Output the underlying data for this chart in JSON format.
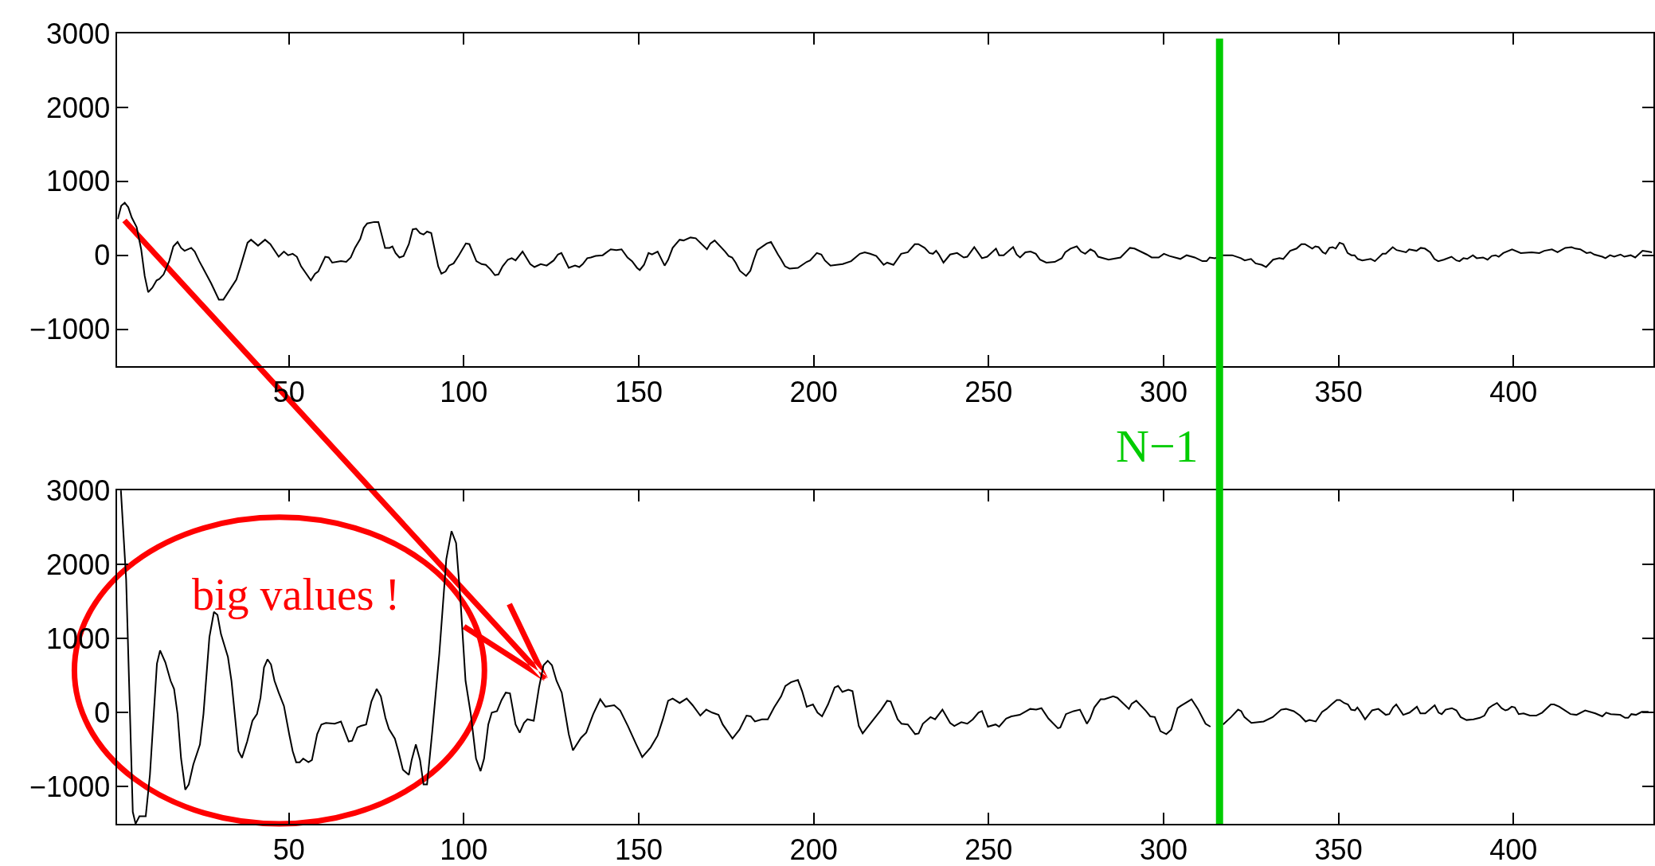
{
  "chart_data": [
    {
      "type": "line",
      "color": "#000000",
      "xlim": [
        1,
        440
      ],
      "xticks": [
        50,
        100,
        150,
        200,
        250,
        300,
        350,
        400
      ],
      "ylim": [
        -1500,
        3000
      ],
      "yticks": [
        {
          "value": -1000,
          "label": "−1000"
        },
        0,
        1000,
        2000,
        3000
      ],
      "grid": false,
      "x": [
        1.1,
        2.1,
        3.1,
        4.1,
        5.1,
        6.5,
        7.8,
        8.8,
        9.8,
        11,
        12.2,
        13,
        14.2,
        15.8,
        17,
        18.2,
        19.2,
        20.2,
        22.1,
        23.1,
        24.4,
        27.8,
        30,
        31.3,
        35,
        36.2,
        38.2,
        39.2,
        41.2,
        43.2,
        44.7,
        47.1,
        48.6,
        49.8,
        51.1,
        52.3,
        53.5,
        56.3,
        57.5,
        58.4,
        60.4,
        61.4,
        62.4,
        64.9,
        66.4,
        67.7,
        68.9,
        70.4,
        71.4,
        72.4,
        74.4,
        75.6,
        77.5,
        78.8,
        79.6,
        80.5,
        81.6,
        82.8,
        84.3,
        85.4,
        86.4,
        87.5,
        88.5,
        89.5,
        90.7,
        92.7,
        93.6,
        94.8,
        95.8,
        97.1,
        98.6,
        100.6,
        101.6,
        103.6,
        105.1,
        106.3,
        107.6,
        108.9,
        109.9,
        111.1,
        112.6,
        113.7,
        114.8,
        116.8,
        119,
        120.2,
        122,
        123.7,
        125.7,
        126.9,
        127.9,
        130,
        131.8,
        133,
        134,
        135.3,
        136.3,
        137.7,
        139.7,
        142,
        143.6,
        145.1,
        146.8,
        148.1,
        149.5,
        150.3,
        151.5,
        152.8,
        153.8,
        155.4,
        157.4,
        158.4,
        159.7,
        161.7,
        162.8,
        164.8,
        166.3,
        169.5,
        170.5,
        171.7,
        174.7,
        175.7,
        176.7,
        177.7,
        178.9,
        180.7,
        181.9,
        182.9,
        183.9,
        186.6,
        187.8,
        189.8,
        190.6,
        191.8,
        193.1,
        195.5,
        198,
        199,
        200.9,
        202.2,
        203.2,
        204.8,
        208.3,
        210.7,
        213.2,
        214.6,
        216.1,
        217.9,
        220,
        221,
        222.8,
        225,
        226.9,
        228.9,
        229.9,
        231.7,
        233.1,
        234.1,
        235,
        235.8,
        237.1,
        239,
        241,
        242.9,
        243.9,
        245.9,
        248.1,
        249.6,
        252.1,
        253,
        254.3,
        257,
        258,
        259,
        260.5,
        262,
        263.5,
        264.7,
        266.5,
        268.9,
        270.9,
        271.9,
        273.4,
        275.2,
        276.4,
        277.6,
        279.1,
        280.3,
        281.3,
        284.3,
        287.7,
        290.4,
        291.7,
        295.2,
        296.6,
        298.6,
        300.1,
        301.7,
        304.8,
        306.6,
        308.9,
        311.1,
        312.3,
        313.2,
        314.7,
        316.9,
        319.6,
        322.1,
        323.2,
        325,
        326.3,
        328.1,
        329.3,
        331.3,
        333.1,
        334.2,
        336.2,
        338,
        339.4,
        340.4,
        342.5,
        343.4,
        344.3,
        345.5,
        346.3,
        347.4,
        348.3,
        349.2,
        350.3,
        351.4,
        352.6,
        353.7,
        354.6,
        355.5,
        356.8,
        359.2,
        360.4,
        362.6,
        363.5,
        365.5,
        366.6,
        369.3,
        370.2,
        372.3,
        373.5,
        374.7,
        376.2,
        377.4,
        378.5,
        380.1,
        382.3,
        383.7,
        384.6,
        385.7,
        386.8,
        388.4,
        389.5,
        391.3,
        392.6,
        393.8,
        394.9,
        395.8,
        397.1,
        399.6,
        402.1,
        405.2,
        407.4,
        408.8,
        411,
        412.6,
        414.8,
        416.6,
        417.7,
        419.1,
        420.9,
        422,
        423.1,
        425.4,
        426.3,
        427.6,
        428.8,
        430.6,
        431.7,
        433.5,
        434.8,
        436.9,
        438.4,
        439.6
      ],
      "values": [
        490,
        670,
        710,
        650,
        510,
        380,
        80,
        -280,
        -500,
        -440,
        -340,
        -320,
        -260,
        -80,
        120,
        180,
        100,
        60,
        100,
        50,
        -80,
        -380,
        -600,
        -600,
        -330,
        -150,
        170,
        210,
        130,
        210,
        150,
        -20,
        50,
        0,
        20,
        -20,
        -150,
        -340,
        -250,
        -220,
        -20,
        -30,
        -100,
        -80,
        -90,
        -30,
        100,
        220,
        370,
        430,
        450,
        450,
        100,
        100,
        120,
        30,
        -30,
        -10,
        150,
        350,
        360,
        300,
        280,
        320,
        300,
        -150,
        -250,
        -220,
        -140,
        -110,
        0,
        160,
        150,
        -80,
        -120,
        -130,
        -190,
        -270,
        -260,
        -150,
        -60,
        -40,
        -70,
        50,
        -120,
        -160,
        -120,
        -140,
        -70,
        10,
        30,
        -170,
        -140,
        -160,
        -120,
        -40,
        -30,
        -10,
        0,
        80,
        70,
        80,
        -30,
        -80,
        -170,
        -200,
        -130,
        30,
        10,
        50,
        -140,
        -60,
        100,
        210,
        200,
        240,
        230,
        80,
        160,
        200,
        50,
        -10,
        -30,
        -100,
        -210,
        -280,
        -210,
        -60,
        70,
        160,
        180,
        10,
        -50,
        -150,
        -180,
        -170,
        -90,
        -70,
        30,
        10,
        -70,
        -140,
        -120,
        -80,
        20,
        40,
        20,
        -10,
        -130,
        -100,
        -130,
        20,
        40,
        150,
        150,
        100,
        30,
        20,
        60,
        10,
        -100,
        10,
        30,
        -30,
        -20,
        110,
        -40,
        -20,
        90,
        0,
        0,
        110,
        10,
        -30,
        40,
        50,
        20,
        -60,
        -100,
        -90,
        -40,
        40,
        90,
        120,
        50,
        20,
        80,
        50,
        -20,
        -60,
        -30,
        100,
        90,
        10,
        -30,
        -30,
        20,
        -10,
        -50,
        0,
        -30,
        -80,
        -80,
        -30,
        -40,
        0,
        0,
        -40,
        -70,
        -50,
        -110,
        -130,
        -160,
        -60,
        -40,
        -50,
        60,
        90,
        150,
        150,
        90,
        120,
        110,
        40,
        20,
        100,
        110,
        90,
        170,
        150,
        30,
        0,
        0,
        -50,
        -70,
        -50,
        -80,
        20,
        20,
        110,
        70,
        40,
        80,
        60,
        100,
        90,
        40,
        -50,
        -80,
        -60,
        -20,
        -70,
        -80,
        -40,
        -50,
        0,
        -40,
        -30,
        -60,
        -10,
        0,
        -20,
        30,
        80,
        30,
        40,
        30,
        60,
        80,
        40,
        100,
        110,
        90,
        80,
        30,
        40,
        10,
        -20,
        -40,
        0,
        -20,
        10,
        -20,
        0,
        -30,
        60,
        50,
        40
      ],
      "ref_lines": [
        {
          "axis": "x",
          "value": 316,
          "color": "#00cc00"
        }
      ]
    },
    {
      "type": "line",
      "color": "#000000",
      "xlim": [
        1,
        440
      ],
      "xticks": [
        50,
        100,
        150,
        200,
        250,
        300,
        350,
        400
      ],
      "ylim": [
        -1500,
        3000
      ],
      "yticks": [
        {
          "value": -1000,
          "label": "−1000"
        },
        0,
        1000,
        2000,
        3000
      ],
      "grid": false,
      "x": [
        2,
        3.5,
        5.4,
        6.2,
        7.3,
        9.1,
        10.3,
        12.3,
        13.2,
        14.7,
        16.2,
        17.2,
        18.2,
        19.2,
        20.4,
        21.4,
        22.7,
        24.6,
        25.6,
        27.3,
        28.6,
        29.6,
        30.6,
        32.6,
        33.6,
        35.6,
        36.6,
        38.1,
        39.6,
        40.9,
        41.9,
        42.9,
        43.9,
        44.9,
        45.9,
        47.1,
        48.6,
        50.1,
        51.1,
        52.1,
        53.1,
        54.1,
        55.6,
        56.6,
        58.1,
        59.3,
        60.6,
        63.1,
        64.9,
        67.1,
        68.1,
        69.6,
        70.6,
        72.1,
        73.6,
        75.1,
        76.3,
        77.6,
        78.6,
        80.3,
        81.3,
        82.6,
        84.3,
        85.1,
        86.3,
        87.5,
        88.5,
        89.5,
        91,
        93,
        95,
        96.5,
        97.8,
        99,
        100.5,
        102,
        103.5,
        104.8,
        105.8,
        107,
        108,
        109.5,
        110.8,
        112,
        113.2,
        114.8,
        116,
        117.2,
        118.2,
        120,
        121.5,
        122.8,
        124,
        125.2,
        126.5,
        128,
        130,
        131.2,
        133.5,
        135,
        137,
        139,
        140.5,
        143,
        144.7,
        146.9,
        149.3,
        151,
        153.4,
        155.4,
        156.9,
        158.4,
        159.7,
        161.7,
        163.7,
        165.4,
        167.6,
        169.3,
        171,
        172.8,
        174,
        176.8,
        178.8,
        180.8,
        182,
        183.2,
        185.2,
        186.9,
        188.7,
        190.7,
        191.9,
        193.5,
        195.5,
        196.7,
        198,
        199.8,
        201.1,
        202.4,
        204.1,
        206,
        207,
        208.2,
        209.9,
        211.1,
        212.9,
        214,
        216.3,
        219.3,
        221,
        222,
        224,
        225.1,
        226.9,
        229,
        230,
        231.2,
        233.4,
        234.7,
        236.8,
        239,
        240.2,
        242.2,
        243.9,
        245.5,
        247.1,
        248.1,
        249.8,
        252,
        253,
        255,
        256.5,
        258.9,
        261.9,
        263.6,
        265.1,
        267.1,
        269.8,
        270.5,
        272.1,
        274.3,
        276.1,
        278.1,
        279,
        280.2,
        282,
        283.1,
        285.6,
        286.8,
        290.1,
        290.9,
        292.2,
        295,
        296.2,
        297.5,
        299.1,
        300.8,
        302.2,
        304,
        304.9,
        308,
        309.8,
        312,
        313.4,
        316,
        317,
        319.3,
        321.3,
        322.2,
        323.1,
        325.1,
        328.6,
        331.2,
        333.6,
        335,
        337.2,
        339,
        340.6,
        341.7,
        343.5,
        345.3,
        346.6,
        348,
        349.5,
        350.4,
        351.6,
        352.7,
        353.6,
        354.7,
        355.4,
        356.3,
        357.6,
        359.6,
        361.4,
        363.5,
        364.5,
        365.6,
        366.5,
        368.5,
        370.3,
        372.4,
        373.4,
        374.8,
        377.5,
        378.6,
        379.5,
        380.6,
        382.4,
        383.7,
        384.9,
        386.6,
        388.6,
        390.4,
        391.7,
        392.9,
        394.1,
        395.3,
        396.6,
        397.7,
        398.4,
        399.5,
        400.4,
        401.5,
        402.9,
        404.7,
        406.5,
        408.2,
        410.7,
        411.6,
        413.1,
        416.3,
        418,
        420.5,
        423.4,
        425.4,
        426.5,
        427.8,
        430.5,
        431.9,
        432.8,
        433.7,
        435,
        436.7,
        438.6
      ],
      "values": [
        3000,
        1800,
        -1340,
        -1500,
        -1400,
        -1400,
        -840,
        660,
        840,
        680,
        430,
        320,
        -20,
        -620,
        -1040,
        -970,
        -700,
        -430,
        -20,
        1020,
        1360,
        1320,
        1060,
        750,
        430,
        -520,
        -610,
        -390,
        -110,
        -20,
        200,
        610,
        720,
        650,
        430,
        270,
        90,
        -290,
        -520,
        -670,
        -670,
        -620,
        -670,
        -640,
        -290,
        -160,
        -140,
        -150,
        -120,
        -390,
        -380,
        -200,
        -180,
        -160,
        150,
        320,
        220,
        -70,
        -220,
        -350,
        -520,
        -770,
        -840,
        -640,
        -430,
        -640,
        -970,
        -970,
        -250,
        790,
        2070,
        2450,
        2290,
        1560,
        430,
        -20,
        -620,
        -790,
        -620,
        -160,
        0,
        20,
        170,
        270,
        260,
        -160,
        -270,
        -140,
        -90,
        -110,
        340,
        640,
        700,
        640,
        430,
        270,
        -290,
        -510,
        -340,
        -270,
        -20,
        180,
        80,
        100,
        30,
        -180,
        -430,
        -600,
        -470,
        -310,
        -90,
        160,
        190,
        130,
        190,
        100,
        -40,
        40,
        0,
        -30,
        -160,
        -350,
        -230,
        -40,
        -50,
        -120,
        -90,
        -90,
        70,
        220,
        360,
        410,
        440,
        290,
        80,
        110,
        0,
        -50,
        110,
        340,
        360,
        280,
        310,
        290,
        -180,
        -280,
        -140,
        40,
        160,
        150,
        -90,
        -150,
        -160,
        -290,
        -280,
        -150,
        -60,
        -90,
        40,
        -140,
        -180,
        -130,
        -150,
        -90,
        0,
        20,
        -190,
        -160,
        -190,
        -80,
        -50,
        -30,
        50,
        40,
        60,
        -80,
        -210,
        -200,
        -20,
        20,
        40,
        -150,
        -80,
        70,
        180,
        180,
        220,
        200,
        50,
        120,
        160,
        20,
        -50,
        -60,
        -250,
        -290,
        -230,
        60,
        90,
        180,
        50,
        -150,
        -190,
        null,
        -160,
        -60,
        40,
        20,
        -60,
        -140,
        -120,
        -60,
        40,
        50,
        20,
        -40,
        -120,
        -100,
        -120,
        10,
        50,
        110,
        170,
        170,
        130,
        110,
        40,
        30,
        70,
        10,
        -90,
        30,
        50,
        -30,
        -20,
        70,
        110,
        -30,
        0,
        80,
        -10,
        -10,
        100,
        0,
        -20,
        40,
        60,
        30,
        -60,
        -100,
        -90,
        -70,
        -40,
        60,
        100,
        130,
        60,
        30,
        40,
        80,
        70,
        -20,
        -10,
        -40,
        -40,
        0,
        110,
        110,
        80,
        -20,
        -30,
        30,
        -10,
        -50,
        0,
        -20,
        -30,
        -70,
        -70,
        -20,
        -30,
        10,
        10
      ],
      "ref_lines": [
        {
          "axis": "x",
          "value": 316,
          "color": "#00cc00",
          "label": "N−1"
        }
      ],
      "annotations": [
        "big values !"
      ]
    }
  ]
}
